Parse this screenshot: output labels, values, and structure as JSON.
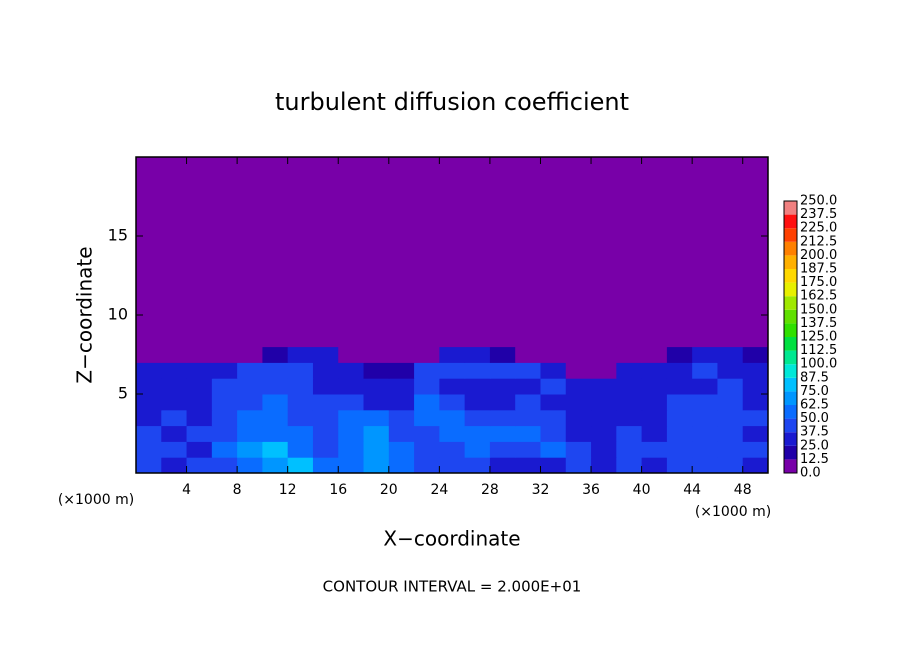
{
  "chart_data": {
    "type": "heatmap",
    "title": "turbulent diffusion coefficient",
    "x_label": "X−coordinate",
    "y_label": "Z−coordinate",
    "x_unit": "(×1000 m)",
    "y_unit": "(×1000 m)",
    "footnote": "CONTOUR INTERVAL = 2.000E+01",
    "xlim": [
      0,
      50
    ],
    "ylim": [
      0,
      20
    ],
    "xticks": [
      4,
      8,
      12,
      16,
      20,
      24,
      28,
      32,
      36,
      40,
      44,
      48
    ],
    "yticks": [
      5,
      10,
      15
    ],
    "x": [
      0,
      2,
      4,
      6,
      8,
      10,
      12,
      14,
      16,
      18,
      20,
      22,
      24,
      26,
      28,
      30,
      32,
      34,
      36,
      38,
      40,
      42,
      44,
      46,
      48,
      50
    ],
    "y": [
      0,
      1,
      2,
      3,
      4,
      5,
      6,
      7,
      8,
      20
    ],
    "z": [
      [
        40,
        35,
        40,
        45,
        60,
        70,
        75,
        55,
        60,
        65,
        50,
        45,
        40,
        40,
        35,
        30,
        35,
        40,
        30,
        40,
        35,
        40,
        45,
        40,
        35
      ],
      [
        45,
        40,
        35,
        50,
        65,
        75,
        60,
        45,
        55,
        70,
        50,
        40,
        45,
        50,
        40,
        45,
        55,
        45,
        35,
        40,
        40,
        40,
        40,
        45,
        40
      ],
      [
        40,
        35,
        40,
        45,
        60,
        55,
        50,
        40,
        55,
        65,
        45,
        45,
        50,
        60,
        55,
        50,
        45,
        35,
        30,
        40,
        35,
        40,
        40,
        40,
        35
      ],
      [
        35,
        40,
        35,
        40,
        50,
        50,
        40,
        45,
        60,
        55,
        40,
        55,
        50,
        45,
        45,
        40,
        40,
        35,
        30,
        30,
        35,
        40,
        40,
        45,
        40
      ],
      [
        35,
        30,
        35,
        40,
        45,
        50,
        45,
        40,
        40,
        35,
        35,
        50,
        40,
        30,
        35,
        40,
        35,
        35,
        35,
        30,
        35,
        40,
        40,
        40,
        35
      ],
      [
        35,
        30,
        30,
        40,
        45,
        40,
        40,
        35,
        35,
        25,
        30,
        45,
        35,
        35,
        35,
        35,
        40,
        30,
        30,
        30,
        35,
        35,
        35,
        40,
        35
      ],
      [
        30,
        25,
        25,
        35,
        40,
        45,
        40,
        35,
        30,
        20,
        20,
        40,
        40,
        40,
        45,
        40,
        30,
        10,
        10,
        25,
        35,
        35,
        40,
        35,
        30
      ],
      [
        5,
        5,
        5,
        5,
        10,
        20,
        30,
        25,
        10,
        5,
        5,
        10,
        30,
        25,
        20,
        10,
        5,
        5,
        5,
        5,
        10,
        20,
        25,
        25,
        15
      ],
      [
        0,
        0,
        0,
        0,
        0,
        0,
        0,
        0,
        0,
        0,
        0,
        0,
        0,
        0,
        0,
        0,
        0,
        0,
        0,
        0,
        0,
        0,
        0,
        0,
        0
      ]
    ],
    "levels": [
      {
        "value": 0,
        "label": "0.0"
      },
      12.5,
      {
        "value": 25,
        "label": "25.0"
      },
      37.5,
      {
        "value": 50,
        "label": "50.0"
      },
      62.5,
      {
        "value": 75,
        "label": "75.0"
      },
      87.5,
      {
        "value": 100,
        "label": "100.0"
      },
      112.5,
      {
        "value": 125,
        "label": "125.0"
      },
      137.5,
      {
        "value": 150,
        "label": "150.0"
      },
      162.5,
      {
        "value": 175,
        "label": "175.0"
      },
      187.5,
      {
        "value": 200,
        "label": "200.0"
      },
      212.5,
      {
        "value": 225,
        "label": "225.0"
      },
      237.5,
      {
        "value": 250,
        "label": "250.0"
      }
    ],
    "colors": [
      "#7800a8",
      "#2000a8",
      "#1a1ad0",
      "#1e46f0",
      "#0a6cff",
      "#0096ff",
      "#00c0ff",
      "#00e8d8",
      "#00e890",
      "#00e040",
      "#30e000",
      "#60e000",
      "#a0e800",
      "#e8f000",
      "#ffd800",
      "#ffb000",
      "#ff8000",
      "#ff4000",
      "#ff1010",
      "#f08080"
    ]
  }
}
